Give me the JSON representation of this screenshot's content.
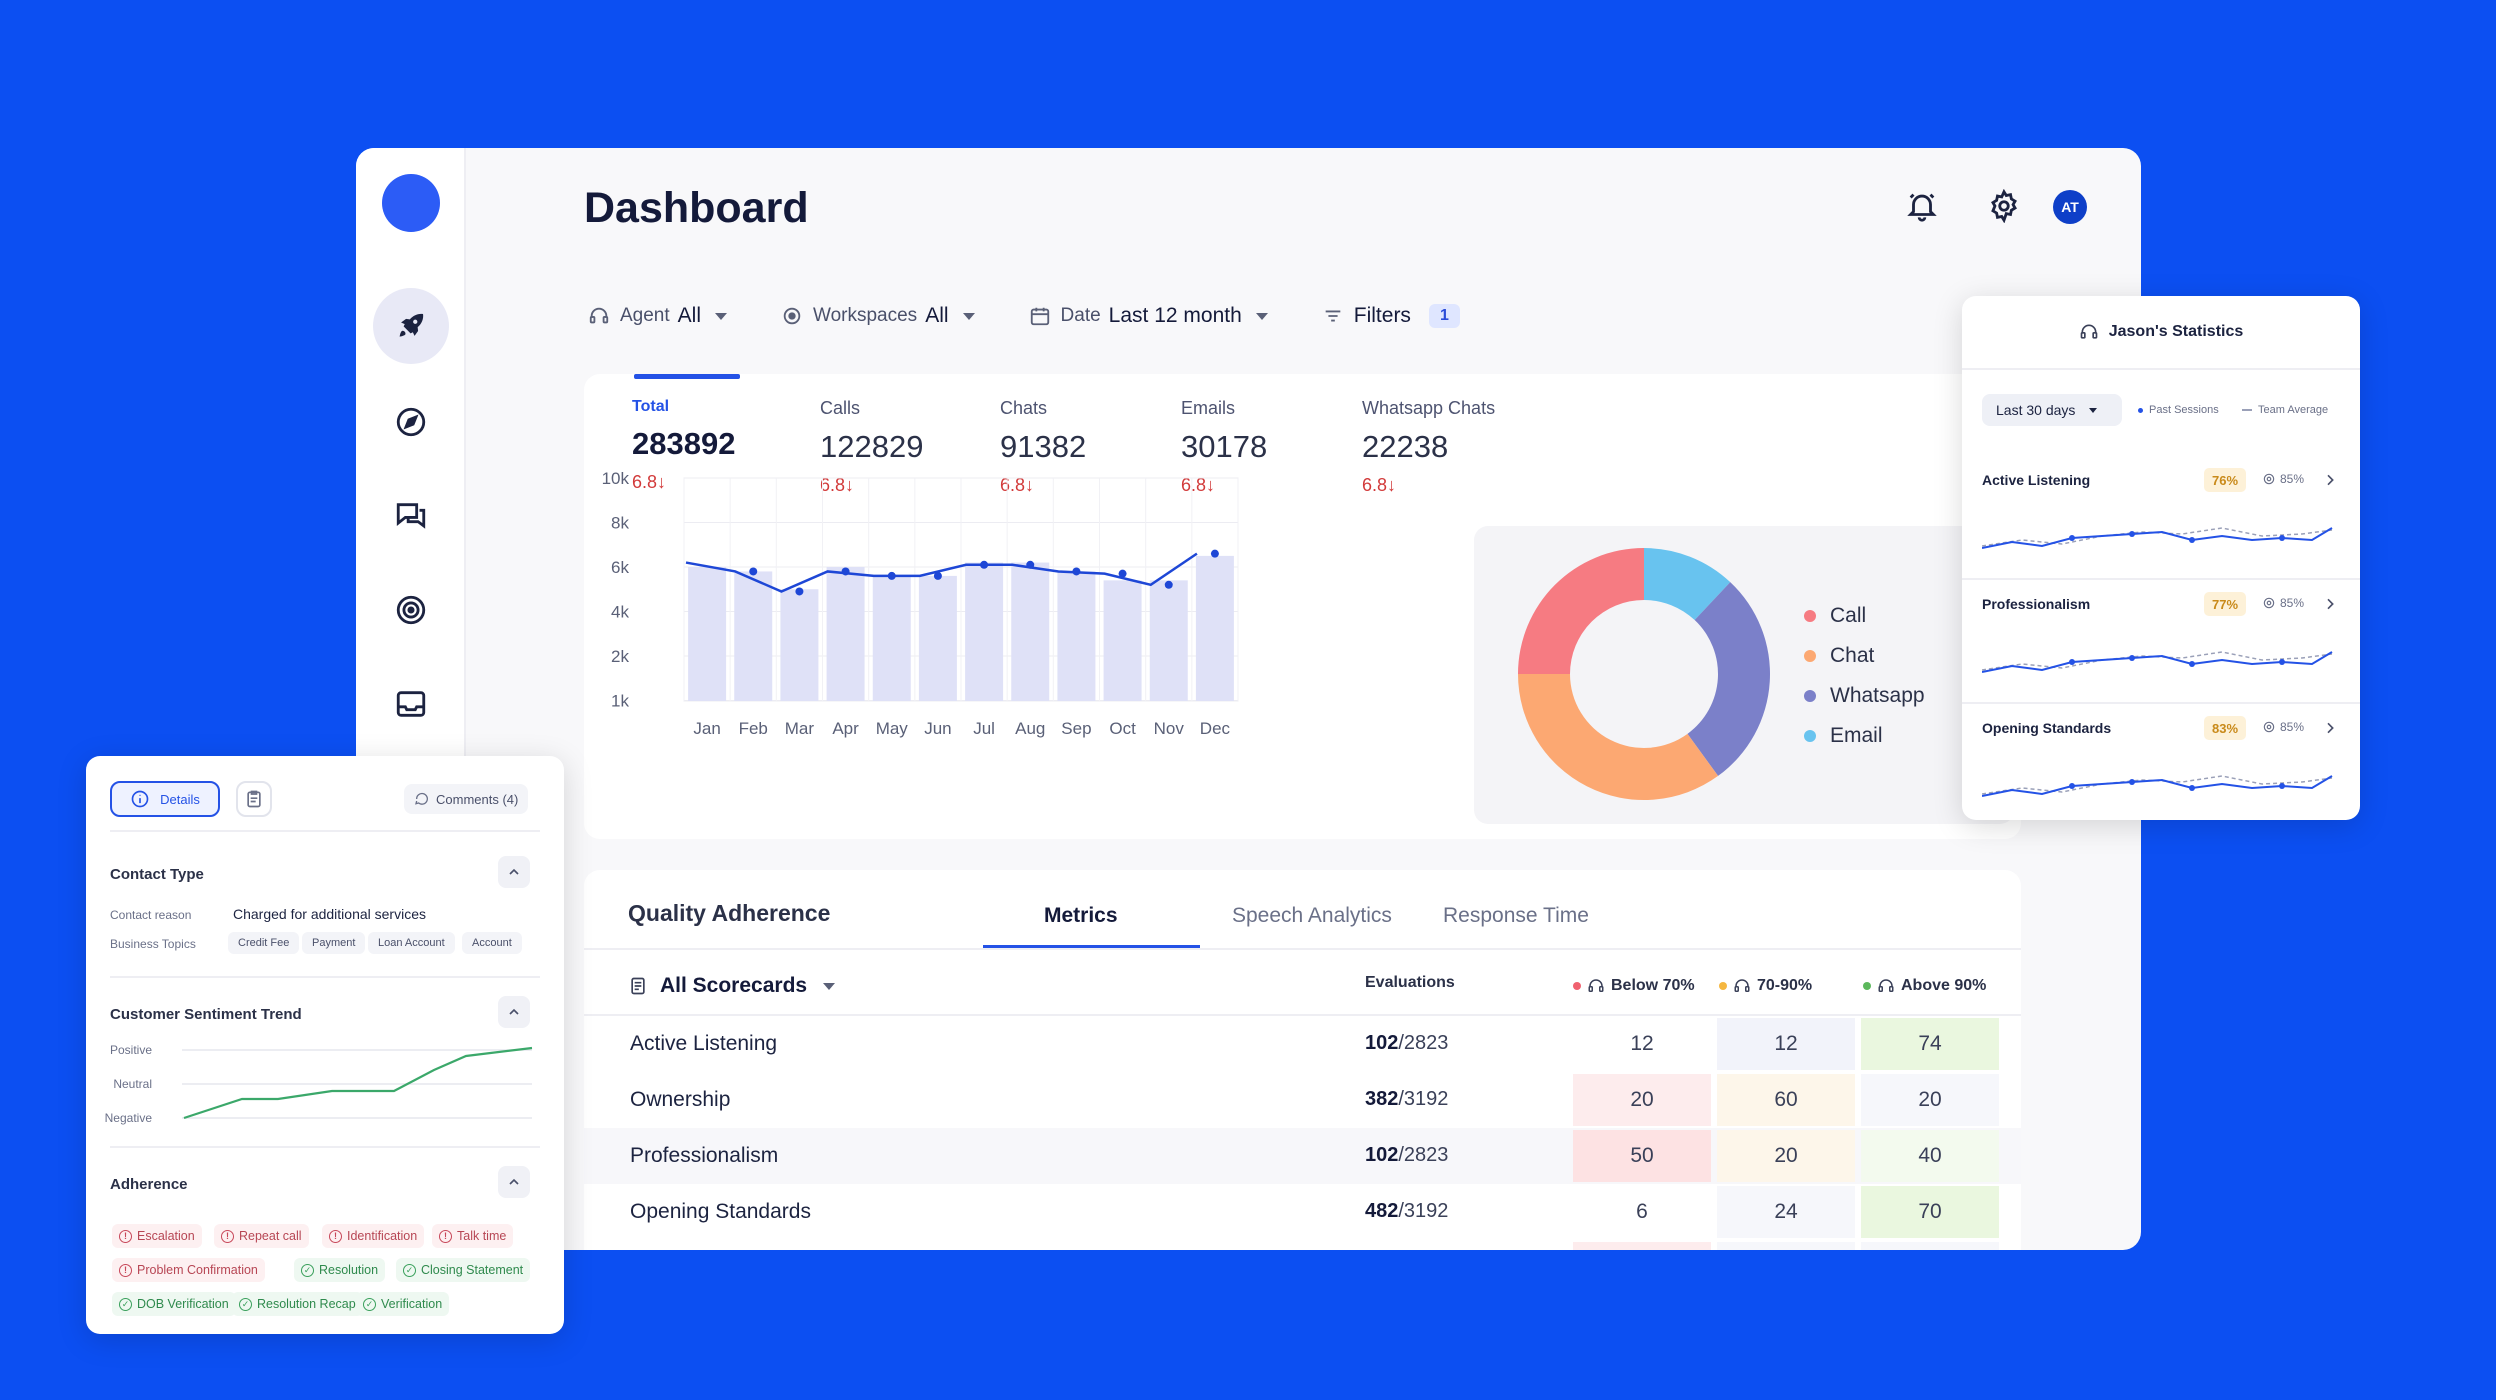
{
  "header": {
    "title": "Dashboard",
    "avatar_initials": "AT"
  },
  "sidebar": {
    "items": [
      "rocket-icon",
      "compass-icon",
      "chat-icon",
      "target-icon",
      "inbox-icon"
    ]
  },
  "filters": [
    {
      "label": "Agent",
      "value": "All"
    },
    {
      "label": "Workspaces",
      "value": "All"
    },
    {
      "label": "Date",
      "value": "Last 12 month"
    }
  ],
  "filters_button": {
    "label": "Filters",
    "count": "1"
  },
  "stats": [
    {
      "label": "Total",
      "value": "283892",
      "change": "6.8↓"
    },
    {
      "label": "Calls",
      "value": "122829",
      "change": "6.8↓"
    },
    {
      "label": "Chats",
      "value": "91382",
      "change": "6.8↓"
    },
    {
      "label": "Emails",
      "value": "30178",
      "change": "6.8↓"
    },
    {
      "label": "Whatsapp Chats",
      "value": "22238",
      "change": "6.8↓"
    }
  ],
  "chart_data": [
    {
      "type": "bar",
      "categories": [
        "Jan",
        "Feb",
        "Mar",
        "Apr",
        "May",
        "Jun",
        "Jul",
        "Aug",
        "Sep",
        "Oct",
        "Nov",
        "Dec"
      ],
      "series": [
        {
          "type": "bar",
          "values": [
            6000,
            5800,
            5000,
            6000,
            5600,
            5600,
            6200,
            6200,
            5800,
            5400,
            5400,
            6500
          ]
        },
        {
          "type": "line",
          "values": [
            6200,
            5800,
            4900,
            5800,
            5600,
            5600,
            6100,
            6100,
            5800,
            5700,
            5200,
            6600
          ]
        }
      ],
      "y_ticks": [
        "10k",
        "8k",
        "6k",
        "4k",
        "2k",
        "1k"
      ],
      "grid": true
    },
    {
      "type": "pie",
      "categories": [
        "Call",
        "Chat",
        "Whatsapp",
        "Email"
      ],
      "values": [
        25,
        35,
        28,
        12
      ],
      "colors": [
        "#f67b82",
        "#fca872",
        "#7b80c9",
        "#68c3ef"
      ],
      "donut": true
    }
  ],
  "donut_legend": [
    {
      "label": "Call",
      "color": "#f67b82"
    },
    {
      "label": "Chat",
      "color": "#fca872"
    },
    {
      "label": "Whatsapp",
      "color": "#7b80c9"
    },
    {
      "label": "Email",
      "color": "#68c3ef"
    }
  ],
  "quality": {
    "title": "Quality Adherence",
    "tabs": [
      "Metrics",
      "Speech Analytics",
      "Response Time"
    ],
    "scorecard_select": "All Scorecards",
    "headers": {
      "evaluations": "Evaluations",
      "below": "Below 70%",
      "mid": "70-90%",
      "above": "Above 90%"
    },
    "rows": [
      {
        "name": "Active Listening",
        "eval_bold": "102",
        "eval_total": "/2823",
        "below": "12",
        "mid": "12",
        "above": "74"
      },
      {
        "name": "Ownership",
        "eval_bold": "382",
        "eval_total": "/3192",
        "below": "20",
        "mid": "60",
        "above": "20"
      },
      {
        "name": "Professionalism",
        "eval_bold": "102",
        "eval_total": "/2823",
        "below": "50",
        "mid": "20",
        "above": "40"
      },
      {
        "name": "Opening Standards",
        "eval_bold": "482",
        "eval_total": "/3192",
        "below": "6",
        "mid": "24",
        "above": "70"
      }
    ]
  },
  "details_panel": {
    "tab_details": "Details",
    "comments": "Comments (4)",
    "contact_type": {
      "title": "Contact Type",
      "reason_label": "Contact reason",
      "reason_value": "Charged for additional services",
      "topics_label": "Business Topics",
      "topics": [
        "Credit Fee",
        "Payment",
        "Loan Account",
        "Account"
      ]
    },
    "sentiment": {
      "title": "Customer Sentiment Trend",
      "levels": [
        "Positive",
        "Neutral",
        "Negative"
      ]
    },
    "adherence": {
      "title": "Adherence",
      "chips": [
        {
          "label": "Escalation",
          "status": "fail"
        },
        {
          "label": "Repeat call",
          "status": "fail"
        },
        {
          "label": "Identification",
          "status": "fail"
        },
        {
          "label": "Talk time",
          "status": "fail"
        },
        {
          "label": "Problem Confirmation",
          "status": "fail"
        },
        {
          "label": "Resolution",
          "status": "pass"
        },
        {
          "label": "Closing Statement",
          "status": "pass"
        },
        {
          "label": "DOB Verification",
          "status": "pass"
        },
        {
          "label": "Resolution Recap",
          "status": "pass"
        },
        {
          "label": "Verification",
          "status": "pass"
        }
      ]
    }
  },
  "stats_panel": {
    "title": "Jason's Statistics",
    "period": "Last 30 days",
    "legend_past": "Past Sessions",
    "legend_team": "Team Average",
    "metrics": [
      {
        "name": "Active Listening",
        "score": "76%",
        "team": "85%"
      },
      {
        "name": "Professionalism",
        "score": "77%",
        "team": "85%"
      },
      {
        "name": "Opening Standards",
        "score": "83%",
        "team": "85%"
      }
    ]
  }
}
